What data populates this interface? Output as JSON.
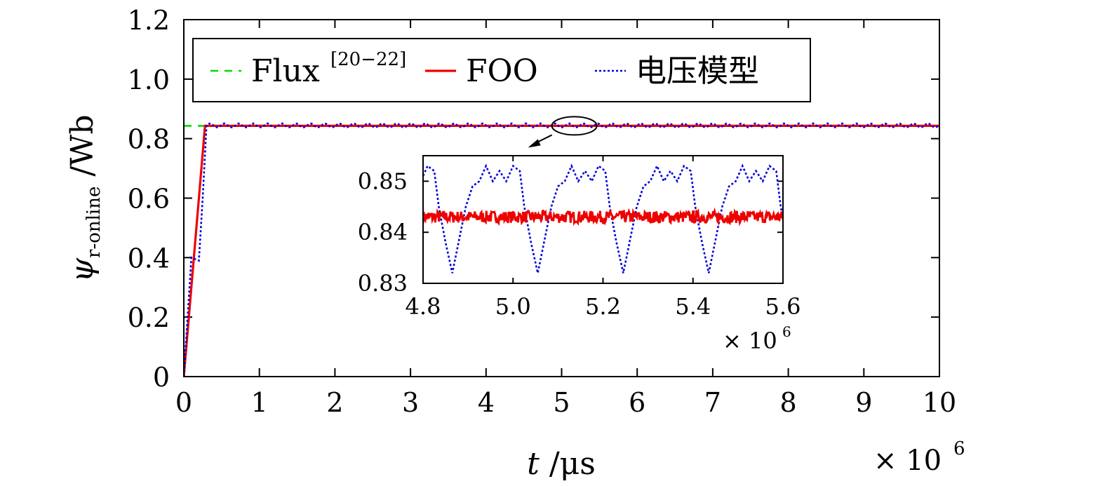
{
  "chart_data": [
    {
      "id": "main",
      "type": "line",
      "xlabel_var": "t",
      "xlabel_unit": " /μs",
      "x_multiplier": "× 10",
      "x_multiplier_exp": "6",
      "ylabel_var": "ψ",
      "ylabel_sub": "r-online",
      "ylabel_unit": " /Wb",
      "xlim": [
        0,
        10
      ],
      "ylim": [
        0,
        1.2
      ],
      "xticks": [
        0,
        1,
        2,
        3,
        4,
        5,
        6,
        7,
        8,
        9,
        10
      ],
      "xtick_labels": [
        "0",
        "1",
        "2",
        "3",
        "4",
        "5",
        "6",
        "7",
        "8",
        "9",
        "10"
      ],
      "yticks": [
        0,
        0.2,
        0.4,
        0.6,
        0.8,
        1.0,
        1.2
      ],
      "ytick_labels": [
        "0",
        "0.2",
        "0.4",
        "0.6",
        "0.8",
        "1.0",
        "1.2"
      ],
      "legend": {
        "placement": "top-left",
        "entries": [
          {
            "name": "Flux",
            "superscript": "[20−22]",
            "color": "#00dd00",
            "style": "dashed"
          },
          {
            "name": "FOO",
            "superscript": "",
            "color": "#ee0000",
            "style": "solid"
          },
          {
            "name": "电压模型",
            "superscript": "",
            "color": "#0000dd",
            "style": "dotted"
          }
        ]
      },
      "series": [
        {
          "name": "Flux",
          "color": "#00dd00",
          "style": "dashed",
          "x": [
            0,
            0.28,
            10
          ],
          "y": [
            0.843,
            0.843,
            0.843
          ]
        },
        {
          "name": "FOO",
          "color": "#ee0000",
          "style": "solid",
          "x": [
            0,
            0.28,
            10
          ],
          "y": [
            0,
            0.843,
            0.843
          ]
        },
        {
          "name": "电压模型",
          "color": "#0000dd",
          "style": "dotted",
          "x": [
            0,
            0.1,
            0.2,
            0.25,
            0.3,
            10
          ],
          "y": [
            0,
            0.4,
            0.39,
            0.6,
            0.85,
            0.843
          ],
          "oscillation": {
            "amplitude": 0.008,
            "period": 0.19,
            "from_x": 0.3
          }
        }
      ],
      "annotation": {
        "type": "ellipse-with-arrow",
        "x": 5.15,
        "y": 0.843
      }
    },
    {
      "id": "inset",
      "type": "line",
      "x_multiplier": "× 10",
      "x_multiplier_exp": "6",
      "xlim": [
        4.8,
        5.6
      ],
      "ylim": [
        0.83,
        0.855
      ],
      "xticks": [
        4.8,
        5.0,
        5.2,
        5.4,
        5.6
      ],
      "xtick_labels": [
        "4.8",
        "5.0",
        "5.2",
        "5.4",
        "5.6"
      ],
      "yticks": [
        0.83,
        0.84,
        0.85
      ],
      "ytick_labels": [
        "0.83",
        "0.84",
        "0.85"
      ],
      "series": [
        {
          "name": "电压模型",
          "color": "#0000dd",
          "style": "dotted",
          "period": 0.19,
          "x_first_min": 4.865,
          "shape_x": [
            0,
            0.03,
            0.045,
            0.06,
            0.075,
            0.09,
            0.105,
            0.12,
            0.135,
            0.15,
            0.16,
            0.175,
            0.19
          ],
          "shape_y": [
            0.832,
            0.845,
            0.849,
            0.85,
            0.853,
            0.85,
            0.852,
            0.85,
            0.853,
            0.852,
            0.845,
            0.838,
            0.832
          ]
        },
        {
          "name": "FOO",
          "color": "#ee0000",
          "style": "solid",
          "mean": 0.843,
          "noise": 0.0012
        }
      ]
    }
  ]
}
